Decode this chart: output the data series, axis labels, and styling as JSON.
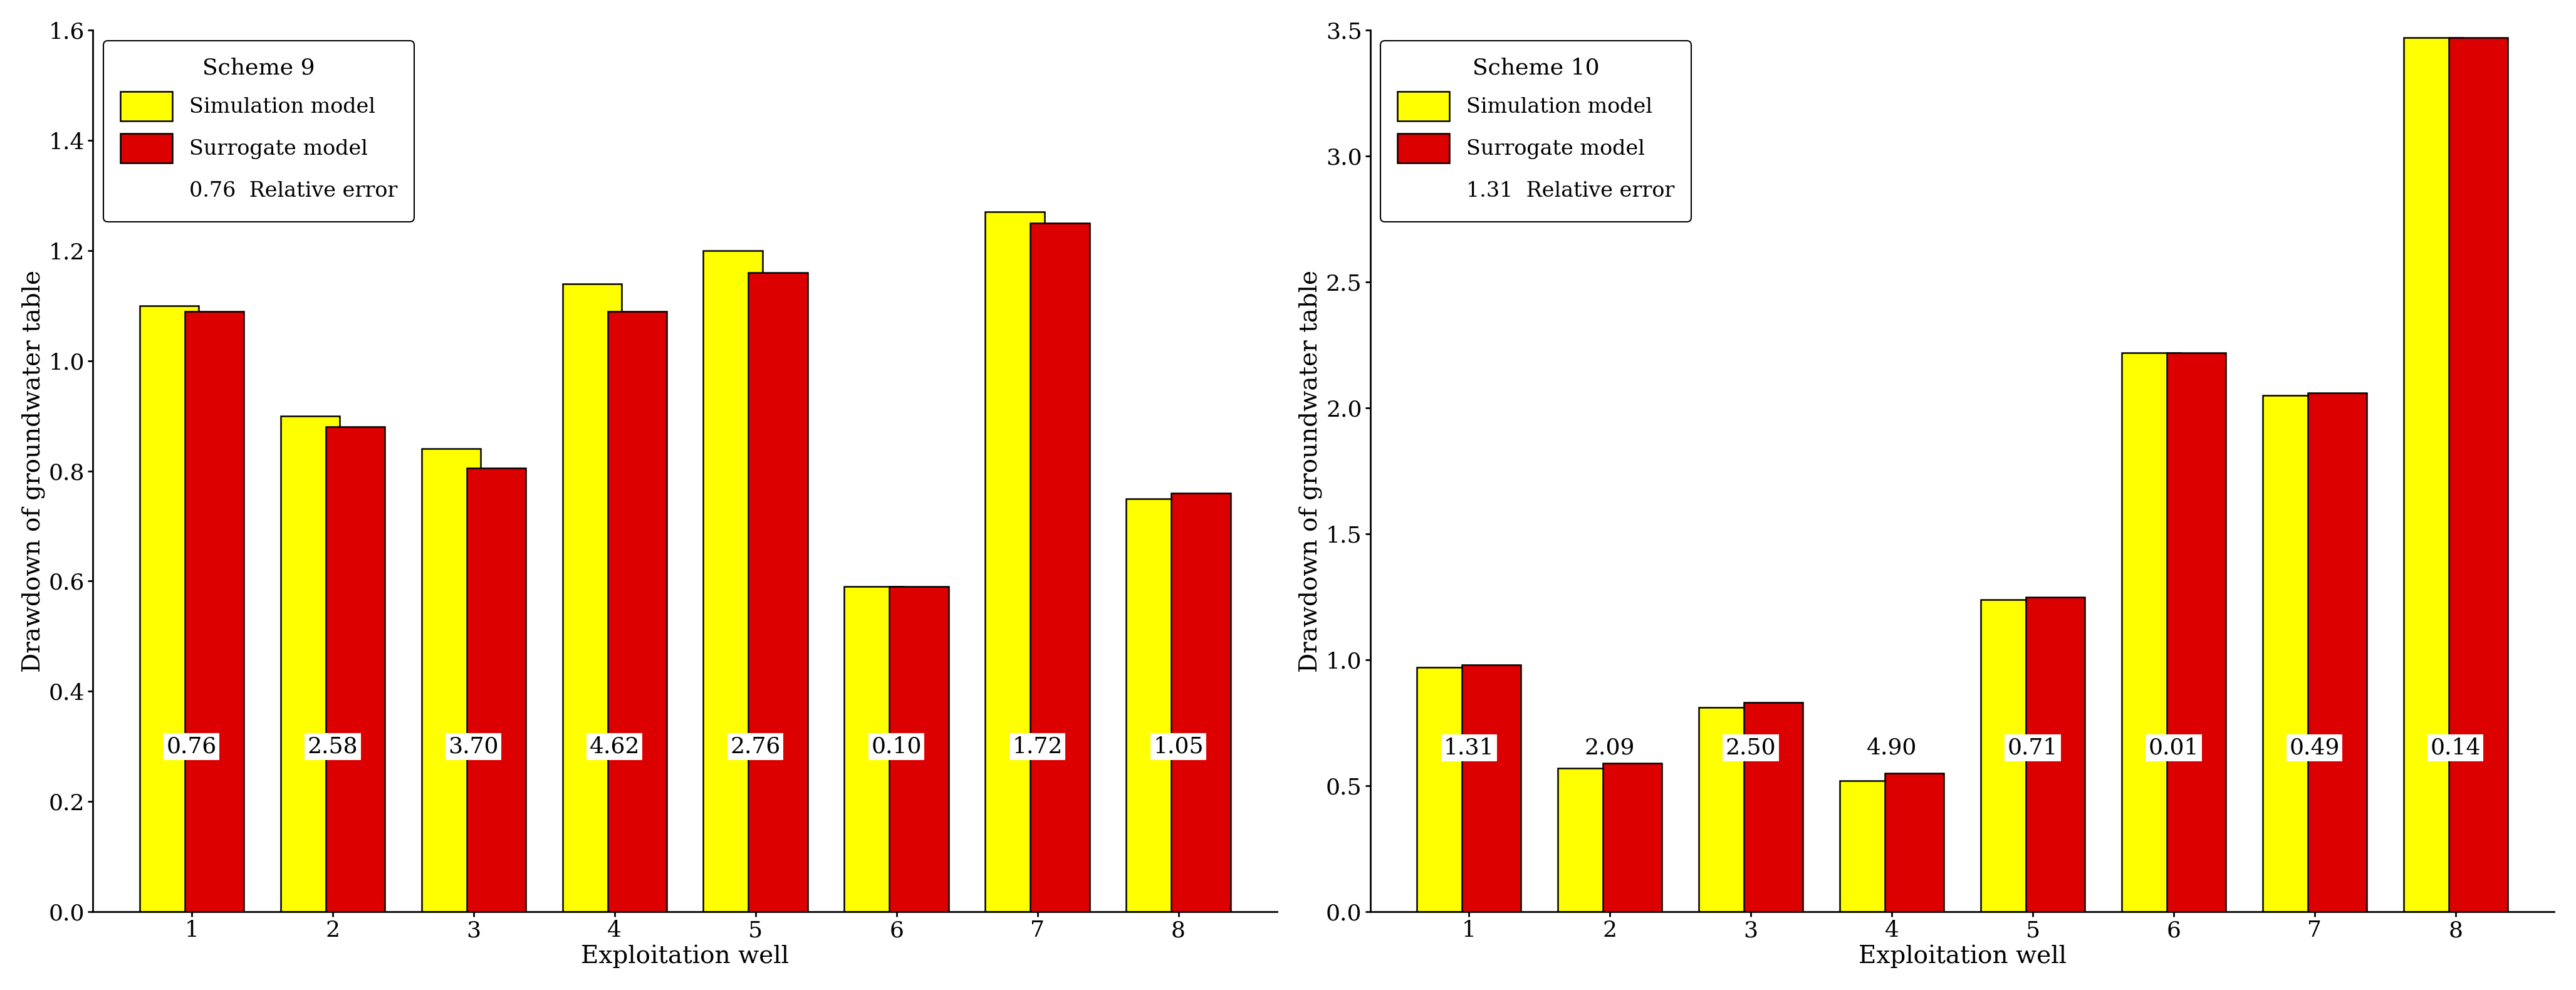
{
  "scheme9": {
    "title": "Scheme 9",
    "simulation": [
      1.1,
      0.9,
      0.84,
      1.14,
      1.2,
      0.59,
      1.27,
      0.75
    ],
    "surrogate": [
      1.09,
      0.88,
      0.805,
      1.09,
      1.16,
      0.59,
      1.25,
      0.76
    ],
    "errors": [
      "0.76",
      "2.58",
      "3.70",
      "4.62",
      "2.76",
      "0.10",
      "1.72",
      "1.05"
    ],
    "relative_error": "0.76",
    "ylabel": "Drawdown of groundwater table",
    "xlabel": "Exploitation well",
    "ylim": [
      0.0,
      1.6
    ],
    "yticks": [
      0.0,
      0.2,
      0.4,
      0.6,
      0.8,
      1.0,
      1.2,
      1.4,
      1.6
    ],
    "xticks": [
      1,
      2,
      3,
      4,
      5,
      6,
      7,
      8
    ],
    "error_y": 0.3
  },
  "scheme10": {
    "title": "Scheme 10",
    "simulation": [
      0.97,
      0.57,
      0.81,
      0.52,
      1.24,
      2.22,
      2.05,
      3.47
    ],
    "surrogate": [
      0.98,
      0.59,
      0.83,
      0.55,
      1.25,
      2.22,
      2.06,
      3.47
    ],
    "errors": [
      "1.31",
      "2.09",
      "2.50",
      "4.90",
      "0.71",
      "0.01",
      "0.49",
      "0.14"
    ],
    "relative_error": "1.31",
    "ylabel": "Drawdown of groundwater table",
    "xlabel": "Exploitation well",
    "ylim": [
      0.0,
      3.5
    ],
    "yticks": [
      0.0,
      0.5,
      1.0,
      1.5,
      2.0,
      2.5,
      3.0,
      3.5
    ],
    "xticks": [
      1,
      2,
      3,
      4,
      5,
      6,
      7,
      8
    ],
    "error_y": 0.65
  },
  "bar_width": 0.42,
  "bar_overlap": 0.1,
  "sim_color": "#FFFF00",
  "sur_color": "#DD0000",
  "bar_edge_color": "#000000",
  "sim_label": "Simulation model",
  "sur_label": "Surrogate model",
  "error_text_color": "#000000",
  "error_fontsize": 26,
  "label_fontsize": 28,
  "tick_fontsize": 26,
  "legend_fontsize": 24,
  "background_color": "#ffffff"
}
